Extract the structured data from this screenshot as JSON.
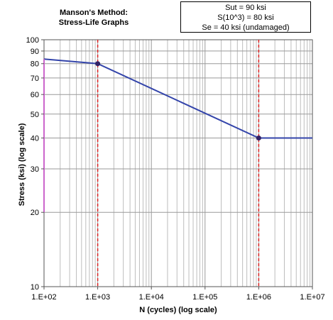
{
  "chart_data": {
    "type": "line",
    "title": "Manson's Method:",
    "subtitle": "Stress-Life Graphs",
    "info_lines": [
      "Sut = 90 ksi",
      "S(10^3) = 80 ksi",
      "Se = 40 ksi (undamaged)"
    ],
    "xlabel": "N (cycles) (log scale)",
    "ylabel": "Stress (ksi) (log scale)",
    "x_scale": "log",
    "y_scale": "log",
    "xlim": [
      100,
      10000000
    ],
    "ylim": [
      10,
      100
    ],
    "x_ticks": [
      100,
      1000,
      10000,
      100000,
      1000000,
      10000000
    ],
    "x_tick_labels": [
      "1.E+02",
      "1.E+03",
      "1.E+04",
      "1.E+05",
      "1.E+06",
      "1.E+07"
    ],
    "y_ticks": [
      10,
      20,
      30,
      40,
      50,
      60,
      70,
      80,
      90,
      100
    ],
    "y_tick_labels": [
      "10",
      "20",
      "30",
      "40",
      "50",
      "60",
      "70",
      "80",
      "90",
      "100"
    ],
    "grid": true,
    "series": [
      {
        "color": "#3344aa",
        "points": [
          [
            100,
            83.5
          ],
          [
            1000,
            80
          ],
          [
            1000000,
            40
          ],
          [
            10000000,
            40
          ]
        ]
      },
      {
        "color": "#cc66cc",
        "points": [
          [
            100,
            20
          ],
          [
            100,
            83.5
          ]
        ]
      }
    ],
    "markers": [
      [
        1000,
        80
      ],
      [
        1000000,
        40
      ]
    ],
    "marker_color": "#332266",
    "vertical_lines": [
      {
        "x": 1000,
        "color": "#dd2222",
        "style": "dashed"
      },
      {
        "x": 1000000,
        "color": "#dd2222",
        "style": "dashed"
      }
    ]
  }
}
